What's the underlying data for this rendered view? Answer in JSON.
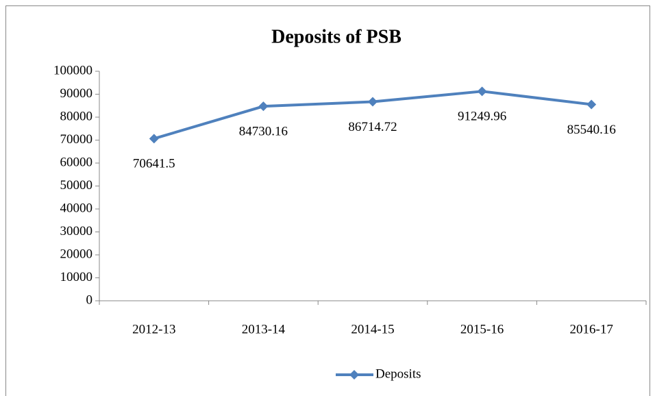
{
  "chart_data": {
    "type": "line",
    "title": "Deposits of PSB",
    "categories": [
      "2012-13",
      "2013-14",
      "2014-15",
      "2015-16",
      "2016-17"
    ],
    "series": [
      {
        "name": "Deposits",
        "color": "#4f81bd",
        "values": [
          70641.5,
          84730.16,
          86714.72,
          91249.96,
          85540.16
        ]
      }
    ],
    "ylim": [
      0,
      100000
    ],
    "yticks": [
      0,
      10000,
      20000,
      30000,
      40000,
      50000,
      60000,
      70000,
      80000,
      90000,
      100000
    ],
    "grid": false,
    "legend": "bottom",
    "data_labels": true
  }
}
